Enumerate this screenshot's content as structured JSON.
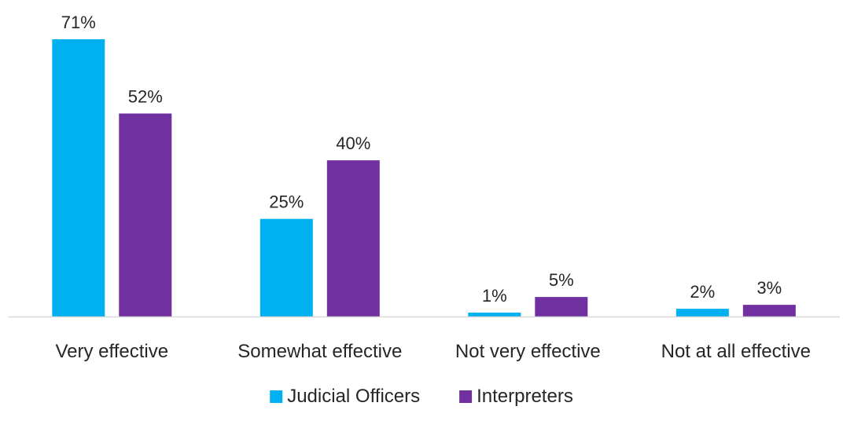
{
  "chart_data": {
    "type": "bar",
    "categories": [
      "Very effective",
      "Somewhat effective",
      "Not very effective",
      "Not at all effective"
    ],
    "series": [
      {
        "name": "Judicial Officers",
        "values": [
          71,
          25,
          1,
          2
        ],
        "color": "#00B0F0"
      },
      {
        "name": "Interpreters",
        "values": [
          52,
          40,
          5,
          3
        ],
        "color": "#7030A0"
      }
    ],
    "value_format": "percent",
    "ylim": [
      0,
      71
    ],
    "gridlines": false,
    "y_axis_visible": false,
    "legend_position": "bottom-center",
    "title": "",
    "xlabel": "",
    "ylabel": ""
  }
}
